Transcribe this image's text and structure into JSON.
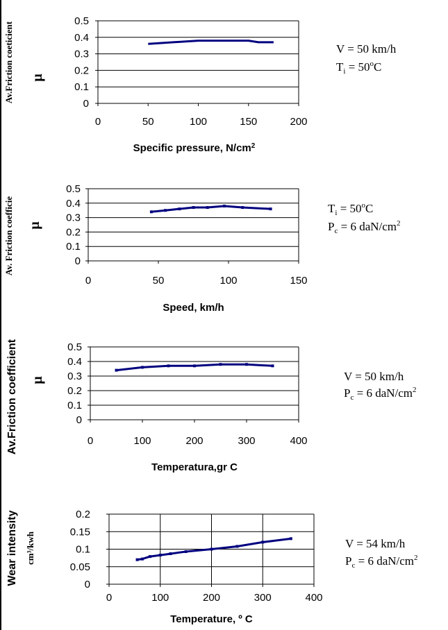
{
  "chart_data": [
    {
      "type": "line",
      "xlabel": "Specific pressure,   N/cm",
      "xlabel_sup": "2",
      "ylabel": "Av.Friction coeticient",
      "ylabel_symbol": "μ",
      "xlim": [
        0,
        200
      ],
      "ylim": [
        0,
        0.5
      ],
      "xticks": [
        "0",
        "50",
        "100",
        "150",
        "200"
      ],
      "yticks": [
        "0",
        "0.1",
        "0.2",
        "0.3",
        "0.4",
        "0.5"
      ],
      "grid": "horizontal",
      "markers": false,
      "color": "#00007f",
      "series": [
        {
          "x": [
            50,
            75,
            100,
            125,
            150,
            160,
            175
          ],
          "y": [
            0.36,
            0.37,
            0.38,
            0.38,
            0.38,
            0.37,
            0.37
          ]
        }
      ],
      "annotations": [
        {
          "parts": [
            [
              "V = 50 km/h",
              ""
            ]
          ]
        },
        {
          "parts": [
            [
              "T",
              ""
            ],
            [
              "i",
              "sub"
            ],
            [
              " = 50",
              ""
            ],
            [
              "o",
              "sup"
            ],
            [
              "C",
              ""
            ]
          ]
        }
      ]
    },
    {
      "type": "line",
      "xlabel": "Speed,  km/h",
      "xlabel_sup": "",
      "ylabel": "Av. Friction coefficie",
      "ylabel_symbol": "μ",
      "xlim": [
        0,
        150
      ],
      "ylim": [
        0,
        0.5
      ],
      "xticks": [
        "0",
        "50",
        "100",
        "150"
      ],
      "yticks": [
        "0",
        "0.1",
        "0.2",
        "0.3",
        "0.4",
        "0.5"
      ],
      "grid": "horizontal",
      "markers": true,
      "color": "#00007f",
      "series": [
        {
          "x": [
            45,
            55,
            65,
            75,
            85,
            97,
            110,
            130
          ],
          "y": [
            0.34,
            0.35,
            0.36,
            0.37,
            0.37,
            0.38,
            0.37,
            0.36
          ]
        }
      ],
      "annotations": [
        {
          "parts": [
            [
              "T",
              ""
            ],
            [
              "i",
              "sub"
            ],
            [
              " = 50",
              ""
            ],
            [
              "o",
              "sup"
            ],
            [
              "C",
              ""
            ]
          ]
        },
        {
          "parts": [
            [
              "P",
              ""
            ],
            [
              "c",
              "sub"
            ],
            [
              " = 6 daN/cm",
              ""
            ],
            [
              "2",
              "sup"
            ]
          ]
        }
      ]
    },
    {
      "type": "line",
      "xlabel": "Temperatura,gr C",
      "xlabel_sup": "",
      "ylabel": "Av.Friction coefficient",
      "ylabel_symbol": "μ",
      "xlim": [
        0,
        400
      ],
      "ylim": [
        0,
        0.5
      ],
      "xticks": [
        "0",
        "100",
        "200",
        "300",
        "400"
      ],
      "yticks": [
        "0",
        "0.1",
        "0.2",
        "0.3",
        "0.4",
        "0.5"
      ],
      "grid": "horizontal",
      "markers": true,
      "color": "#00007f",
      "series": [
        {
          "x": [
            50,
            100,
            150,
            200,
            250,
            300,
            350
          ],
          "y": [
            0.34,
            0.36,
            0.37,
            0.37,
            0.38,
            0.38,
            0.37
          ]
        }
      ],
      "annotations": [
        {
          "parts": [
            [
              "V = 50 km/h",
              ""
            ]
          ]
        },
        {
          "parts": [
            [
              "P",
              ""
            ],
            [
              "c",
              "sub"
            ],
            [
              " = 6 daN/cm",
              ""
            ],
            [
              "2",
              "sup"
            ]
          ]
        }
      ]
    },
    {
      "type": "line",
      "xlabel": "Temperature,    º C",
      "xlabel_sup": "",
      "ylabel": "Wear intensity",
      "ylabel_unit": "cm³/kwh",
      "xlim": [
        0,
        400
      ],
      "ylim": [
        0,
        0.2
      ],
      "xticks": [
        "0",
        "100",
        "200",
        "300",
        "400"
      ],
      "yticks": [
        "0",
        "0.05",
        "0.1",
        "0.15",
        "0.2"
      ],
      "grid": "both",
      "markers": true,
      "color": "#00007f",
      "series": [
        {
          "x": [
            55,
            65,
            80,
            100,
            120,
            150,
            200,
            250,
            300,
            355
          ],
          "y": [
            0.07,
            0.072,
            0.079,
            0.083,
            0.087,
            0.093,
            0.1,
            0.108,
            0.12,
            0.13
          ]
        }
      ],
      "annotations": [
        {
          "parts": [
            [
              "V = 54 km/h",
              ""
            ]
          ]
        },
        {
          "parts": [
            [
              "P",
              ""
            ],
            [
              "c",
              "sub"
            ],
            [
              " = 6 daN/cm",
              ""
            ],
            [
              "2",
              "sup"
            ]
          ]
        }
      ]
    }
  ]
}
